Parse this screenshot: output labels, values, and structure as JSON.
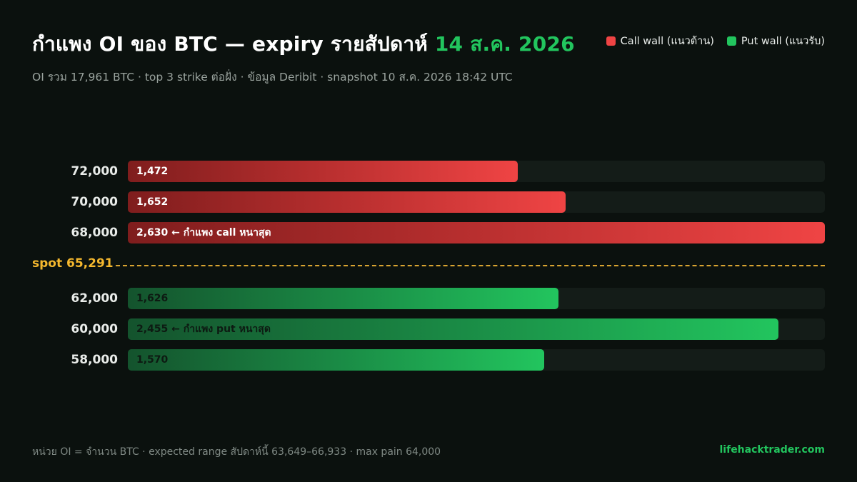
{
  "header": {
    "title_main": "กำแพง OI ของ BTC — expiry รายสัปดาห์ ",
    "title_accent": "14 ส.ค. 2026",
    "subtitle": "OI รวม 17,961 BTC · top 3 strike ต่อฝั่ง · ข้อมูล Deribit · snapshot 10 ส.ค. 2026 18:42 UTC"
  },
  "legend": {
    "call_label": "Call wall (แนวต้าน)",
    "put_label": "Put wall (แนวรับ)"
  },
  "colors": {
    "call": "#ef4444",
    "put": "#22c55e",
    "spot": "#f5b82e"
  },
  "chart_data": {
    "type": "bar",
    "orientation": "horizontal",
    "xlim": [
      0,
      2630
    ],
    "series": [
      {
        "name": "Call wall (แนวต้าน)",
        "categories": [
          "72,000",
          "70,000",
          "68,000"
        ],
        "values": [
          1472,
          1652,
          2630
        ],
        "value_labels": [
          "1,472",
          "1,652",
          "2,630 ← กำแพง call หนาสุด"
        ]
      },
      {
        "name": "Put wall (แนวรับ)",
        "categories": [
          "62,000",
          "60,000",
          "58,000"
        ],
        "values": [
          1626,
          2455,
          1570
        ],
        "value_labels": [
          "1,626",
          "2,455 ← กำแพง put หนาสุด",
          "1,570"
        ]
      }
    ],
    "spot_label": "spot 65,291"
  },
  "footer": {
    "note": "หน่วย OI = จำนวน BTC · expected range สัปดาห์นี้ 63,649–66,933 · max pain 64,000",
    "brand": "lifehacktrader.com"
  }
}
